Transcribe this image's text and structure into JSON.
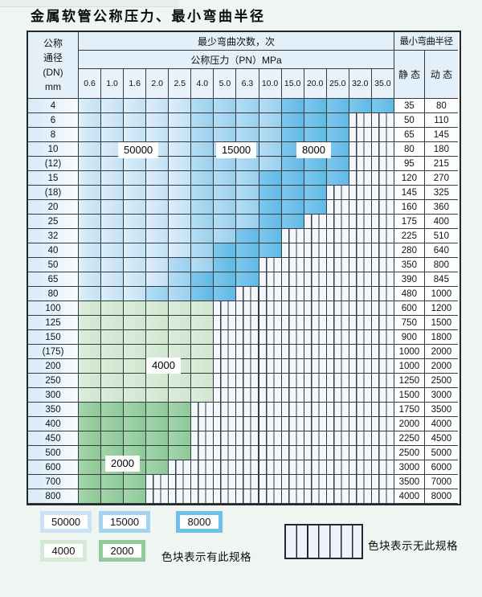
{
  "title": "金属软管公称压力、最小弯曲半径",
  "table": {
    "dn_header": [
      "公称",
      "通径",
      "(DN)",
      "mm"
    ],
    "cycles_header": "最少弯曲次数，次",
    "pressure_header": "公称压力（PN）MPa",
    "radius_header": "最小弯曲半径",
    "static_label": "静 态",
    "dynamic_label": "动 态",
    "pressures": [
      "0.6",
      "1.0",
      "1.6",
      "2.0",
      "2.5",
      "4.0",
      "5.0",
      "6.3",
      "10.0",
      "15.0",
      "20.0",
      "25.0",
      "32.0",
      "35.0"
    ],
    "overlays": [
      {
        "text": "50000"
      },
      {
        "text": "15000"
      },
      {
        "text": "8000"
      },
      {
        "text": "4000"
      },
      {
        "text": "2000"
      }
    ],
    "rows": [
      {
        "dn": "4",
        "static": "35",
        "dynamic": "80",
        "bands": [
          [
            "light",
            5
          ],
          [
            "mid",
            9
          ],
          [
            "dark",
            14
          ]
        ]
      },
      {
        "dn": "6",
        "static": "50",
        "dynamic": "110",
        "bands": [
          [
            "light",
            5
          ],
          [
            "mid",
            9
          ],
          [
            "dark",
            12
          ]
        ]
      },
      {
        "dn": "8",
        "static": "65",
        "dynamic": "145",
        "bands": [
          [
            "light",
            5
          ],
          [
            "mid",
            9
          ],
          [
            "dark",
            12
          ]
        ]
      },
      {
        "dn": "10",
        "static": "80",
        "dynamic": "180",
        "bands": [
          [
            "light",
            5
          ],
          [
            "mid",
            9
          ],
          [
            "dark",
            12
          ]
        ]
      },
      {
        "dn": "(12)",
        "static": "95",
        "dynamic": "215",
        "bands": [
          [
            "light",
            5
          ],
          [
            "mid",
            9
          ],
          [
            "dark",
            12
          ]
        ]
      },
      {
        "dn": "15",
        "static": "120",
        "dynamic": "270",
        "bands": [
          [
            "light",
            5
          ],
          [
            "mid",
            8
          ],
          [
            "dark",
            12
          ]
        ]
      },
      {
        "dn": "(18)",
        "static": "145",
        "dynamic": "325",
        "bands": [
          [
            "light",
            5
          ],
          [
            "mid",
            8
          ],
          [
            "dark",
            11
          ]
        ]
      },
      {
        "dn": "20",
        "static": "160",
        "dynamic": "360",
        "bands": [
          [
            "light",
            5
          ],
          [
            "mid",
            8
          ],
          [
            "dark",
            11
          ]
        ]
      },
      {
        "dn": "25",
        "static": "175",
        "dynamic": "400",
        "bands": [
          [
            "light",
            5
          ],
          [
            "mid",
            8
          ],
          [
            "dark",
            10
          ]
        ]
      },
      {
        "dn": "32",
        "static": "225",
        "dynamic": "510",
        "bands": [
          [
            "light",
            5
          ],
          [
            "mid",
            7
          ],
          [
            "dark",
            9
          ]
        ]
      },
      {
        "dn": "40",
        "static": "280",
        "dynamic": "640",
        "bands": [
          [
            "light",
            5
          ],
          [
            "mid",
            6
          ],
          [
            "dark",
            9
          ]
        ]
      },
      {
        "dn": "50",
        "static": "350",
        "dynamic": "800",
        "bands": [
          [
            "light",
            4
          ],
          [
            "mid",
            6
          ],
          [
            "dark",
            8
          ]
        ]
      },
      {
        "dn": "65",
        "static": "390",
        "dynamic": "845",
        "bands": [
          [
            "light",
            4
          ],
          [
            "mid",
            5
          ],
          [
            "dark",
            8
          ]
        ]
      },
      {
        "dn": "80",
        "static": "480",
        "dynamic": "1000",
        "bands": [
          [
            "light",
            3
          ],
          [
            "mid",
            5
          ],
          [
            "dark",
            7
          ]
        ]
      },
      {
        "dn": "100",
        "static": "600",
        "dynamic": "1200",
        "bands": [
          [
            "glight",
            6
          ]
        ]
      },
      {
        "dn": "125",
        "static": "750",
        "dynamic": "1500",
        "bands": [
          [
            "glight",
            6
          ]
        ]
      },
      {
        "dn": "150",
        "static": "900",
        "dynamic": "1800",
        "bands": [
          [
            "glight",
            6
          ]
        ]
      },
      {
        "dn": "(175)",
        "static": "1000",
        "dynamic": "2000",
        "bands": [
          [
            "glight",
            6
          ]
        ]
      },
      {
        "dn": "200",
        "static": "1000",
        "dynamic": "2000",
        "bands": [
          [
            "glight",
            6
          ]
        ]
      },
      {
        "dn": "250",
        "static": "1250",
        "dynamic": "2500",
        "bands": [
          [
            "glight",
            6
          ]
        ]
      },
      {
        "dn": "300",
        "static": "1500",
        "dynamic": "3000",
        "bands": [
          [
            "glight",
            6
          ]
        ]
      },
      {
        "dn": "350",
        "static": "1750",
        "dynamic": "3500",
        "bands": [
          [
            "gmid",
            5
          ]
        ]
      },
      {
        "dn": "400",
        "static": "2000",
        "dynamic": "4000",
        "bands": [
          [
            "gmid",
            5
          ]
        ]
      },
      {
        "dn": "450",
        "static": "2250",
        "dynamic": "4500",
        "bands": [
          [
            "gmid",
            5
          ]
        ]
      },
      {
        "dn": "500",
        "static": "2500",
        "dynamic": "5000",
        "bands": [
          [
            "gmid",
            5
          ]
        ]
      },
      {
        "dn": "600",
        "static": "3000",
        "dynamic": "6000",
        "bands": [
          [
            "gmid",
            4
          ]
        ]
      },
      {
        "dn": "700",
        "static": "3500",
        "dynamic": "7000",
        "bands": [
          [
            "gmid",
            3
          ]
        ]
      },
      {
        "dn": "800",
        "static": "4000",
        "dynamic": "8000",
        "bands": [
          [
            "gmid",
            3
          ]
        ]
      }
    ]
  },
  "legend": {
    "chips": [
      {
        "label": "50000",
        "color": "#c9e3f6"
      },
      {
        "label": "15000",
        "color": "#a4d3f0"
      },
      {
        "label": "8000",
        "color": "#6fc0e9"
      },
      {
        "label": "4000",
        "color": "#d5e8d4"
      },
      {
        "label": "2000",
        "color": "#93cc9c"
      }
    ],
    "has_spec_text": "色块表示有此规格",
    "no_spec_text": "色块表示无此规格"
  },
  "colors": {
    "grid_line": "#343a3e",
    "header_bg": "#e3eff9",
    "page_bg": "#eff5f0",
    "stripe_fill": "#edf3fa"
  }
}
